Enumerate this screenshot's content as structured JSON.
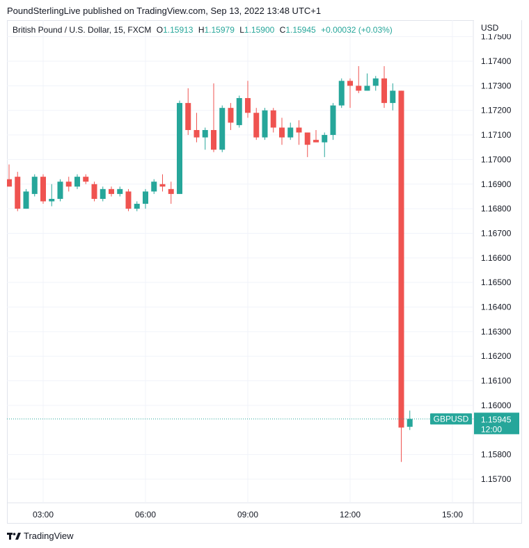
{
  "header": {
    "published_line": "PoundSterlingLive published on TradingView.com, Sep 13, 2022 13:48 UTC+1"
  },
  "legend": {
    "symbol": "British Pound / U.S. Dollar, 15, FXCM",
    "o_label": "O",
    "o": "1.15913",
    "h_label": "H",
    "h": "1.15979",
    "l_label": "L",
    "l": "1.15900",
    "c_label": "C",
    "c": "1.15945",
    "change": "+0.00032 (+0.03%)"
  },
  "footer": {
    "brand": "TradingView",
    "logo_icon": "tradingview-logo-icon"
  },
  "colors": {
    "up": "#26a69a",
    "down": "#ef5350",
    "grid": "#f0f3fa",
    "text": "#131722"
  },
  "chart_data": {
    "type": "candlestick",
    "symbol": "GBPUSD",
    "interval": "15",
    "currency_label": "USD",
    "y_ticks": [
      "1.17500",
      "1.17400",
      "1.17300",
      "1.17200",
      "1.17100",
      "1.17000",
      "1.16900",
      "1.16800",
      "1.16700",
      "1.16600",
      "1.16500",
      "1.16400",
      "1.16300",
      "1.16200",
      "1.16100",
      "1.16000",
      "1.15800",
      "1.15700"
    ],
    "x_ticks": [
      {
        "label": "03:00",
        "t": "03:00"
      },
      {
        "label": "06:00",
        "t": "06:00"
      },
      {
        "label": "09:00",
        "t": "09:00"
      },
      {
        "label": "12:00",
        "t": "12:00"
      },
      {
        "label": "15:00",
        "t": "15:00"
      }
    ],
    "first_bar_time": "02:00",
    "bar_minutes": 15,
    "last_price": "1.15945",
    "last_price_label": "GBPUSD",
    "countdown": "12:00",
    "candles": [
      [
        1.1692,
        1.1698,
        1.1689,
        1.1689
      ],
      [
        1.1693,
        1.1695,
        1.1679,
        1.168
      ],
      [
        1.168,
        1.1688,
        1.168,
        1.1687
      ],
      [
        1.1686,
        1.1694,
        1.1685,
        1.1693
      ],
      [
        1.1693,
        1.1694,
        1.1682,
        1.1683
      ],
      [
        1.1683,
        1.169,
        1.1681,
        1.1684
      ],
      [
        1.1684,
        1.1692,
        1.1683,
        1.1691
      ],
      [
        1.1691,
        1.1693,
        1.1687,
        1.1689
      ],
      [
        1.1689,
        1.1694,
        1.1688,
        1.1693
      ],
      [
        1.1693,
        1.1694,
        1.169,
        1.1691
      ],
      [
        1.169,
        1.1691,
        1.1683,
        1.1684
      ],
      [
        1.1684,
        1.1689,
        1.1683,
        1.1688
      ],
      [
        1.1688,
        1.1689,
        1.1685,
        1.1686
      ],
      [
        1.1686,
        1.1689,
        1.1685,
        1.1688
      ],
      [
        1.1687,
        1.1688,
        1.1679,
        1.168
      ],
      [
        1.168,
        1.1683,
        1.1679,
        1.1682
      ],
      [
        1.1682,
        1.1688,
        1.168,
        1.1687
      ],
      [
        1.1687,
        1.1692,
        1.1686,
        1.1691
      ],
      [
        1.169,
        1.1694,
        1.1687,
        1.1689
      ],
      [
        1.1688,
        1.1691,
        1.1682,
        1.1686
      ],
      [
        1.1686,
        1.1724,
        1.1686,
        1.1723
      ],
      [
        1.1723,
        1.1729,
        1.171,
        1.1712
      ],
      [
        1.1712,
        1.1719,
        1.1707,
        1.1709
      ],
      [
        1.1709,
        1.1713,
        1.1704,
        1.1712
      ],
      [
        1.1712,
        1.1731,
        1.1703,
        1.1704
      ],
      [
        1.1704,
        1.1722,
        1.1703,
        1.1721
      ],
      [
        1.1721,
        1.1723,
        1.1712,
        1.1715
      ],
      [
        1.1714,
        1.1726,
        1.1713,
        1.1725
      ],
      [
        1.1725,
        1.1732,
        1.1717,
        1.1719
      ],
      [
        1.1719,
        1.1721,
        1.1708,
        1.1709
      ],
      [
        1.1709,
        1.1721,
        1.1708,
        1.172
      ],
      [
        1.172,
        1.1721,
        1.1711,
        1.1713
      ],
      [
        1.1713,
        1.1717,
        1.1706,
        1.1709
      ],
      [
        1.1709,
        1.1715,
        1.1708,
        1.1713
      ],
      [
        1.1713,
        1.1716,
        1.1706,
        1.1711
      ],
      [
        1.1711,
        1.1711,
        1.1701,
        1.1706
      ],
      [
        1.1708,
        1.1712,
        1.1707,
        1.1707
      ],
      [
        1.1707,
        1.1711,
        1.1701,
        1.171
      ],
      [
        1.171,
        1.1723,
        1.1708,
        1.1722
      ],
      [
        1.1722,
        1.1733,
        1.1721,
        1.1732
      ],
      [
        1.1732,
        1.1733,
        1.1721,
        1.173
      ],
      [
        1.173,
        1.1738,
        1.1727,
        1.1728
      ],
      [
        1.1728,
        1.1735,
        1.1728,
        1.173
      ],
      [
        1.173,
        1.1734,
        1.1728,
        1.1733
      ],
      [
        1.1733,
        1.1738,
        1.1721,
        1.1723
      ],
      [
        1.1723,
        1.1731,
        1.172,
        1.1728
      ],
      [
        1.1728,
        1.1728,
        1.1577,
        1.1591
      ],
      [
        1.15913,
        1.15979,
        1.159,
        1.15945
      ]
    ]
  }
}
